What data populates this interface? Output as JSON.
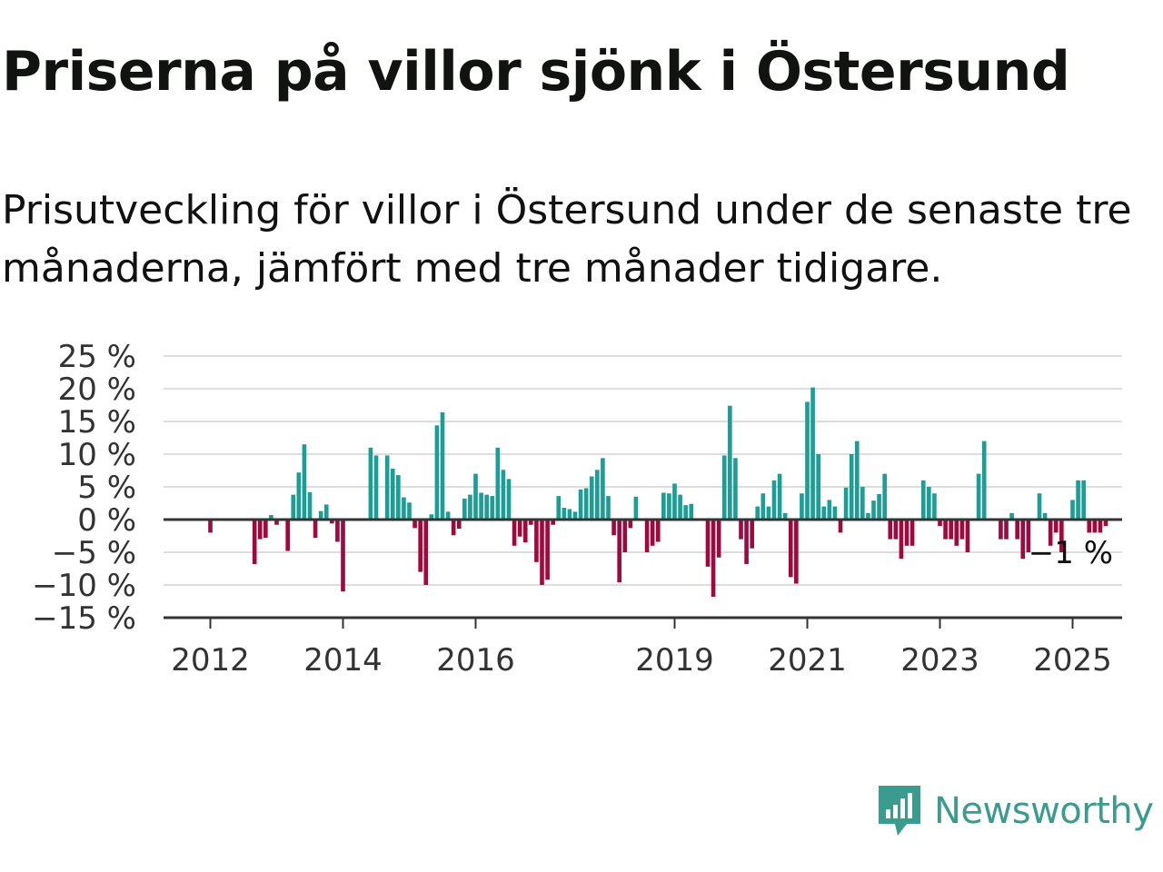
{
  "header": {
    "title": "Priserna på villor sjönk i Östersund",
    "subtitle": "Prisutveckling för villor i Östersund under de senaste tre månaderna, jämfört med tre månader tidigare."
  },
  "brand": {
    "name": "Newsworthy"
  },
  "colors": {
    "positive": "#1a9e96",
    "negative": "#a1083e",
    "grid": "#dddddd",
    "axis": "#333333",
    "brand": "#3a9c8f"
  },
  "chart_data": {
    "type": "bar",
    "unit": "%",
    "ylim": [
      -15,
      25
    ],
    "y_ticks": [
      25,
      20,
      15,
      10,
      5,
      0,
      -5,
      -10,
      -15
    ],
    "y_tick_labels": [
      "25 %",
      "20 %",
      "15 %",
      "10 %",
      "5 %",
      "0 %",
      "−5 %",
      "−10 %",
      "−15 %"
    ],
    "x_ticks": [
      2012,
      2014,
      2016,
      2019,
      2021,
      2023,
      2025
    ],
    "x_tick_labels": [
      "2012",
      "2014",
      "2016",
      "2019",
      "2021",
      "2023",
      "2025"
    ],
    "start_year": 2012,
    "last_value_label": "−1 %",
    "values": [
      -2,
      0,
      0,
      0,
      0,
      0,
      0,
      0,
      -6.8,
      -3,
      -2.8,
      0.7,
      -0.8,
      0,
      -4.8,
      3.8,
      7.2,
      11.5,
      4.2,
      -2.8,
      1.3,
      2.3,
      -0.6,
      -3.4,
      -11,
      0,
      0,
      0,
      0,
      11,
      9.8,
      0,
      9.8,
      7.8,
      6.8,
      3.4,
      2.6,
      -1.3,
      -8,
      -10,
      0.8,
      14.4,
      16.4,
      1.2,
      -2.4,
      -1.4,
      3.2,
      3.8,
      7,
      4.1,
      3.8,
      3.6,
      11,
      7.6,
      6.2,
      -4,
      -2.6,
      -3.5,
      -0.8,
      -6.5,
      -10,
      -9.2,
      -0.8,
      3.6,
      1.8,
      1.6,
      1.2,
      4.6,
      4.8,
      6.6,
      7.6,
      9.4,
      3.6,
      -2.4,
      -9.6,
      -5,
      -1.3,
      3.5,
      0,
      -5,
      -4,
      -3.4,
      4.1,
      4,
      5.5,
      3.8,
      2.2,
      2.4,
      0,
      0,
      -7.2,
      -11.8,
      -5.8,
      9.8,
      17.4,
      9.4,
      -3,
      -6.8,
      -4.4,
      2,
      4,
      2,
      6,
      7,
      1,
      -8.8,
      -9.8,
      4,
      18,
      20.2,
      10,
      2,
      3,
      2,
      -2,
      4.9,
      10,
      12,
      5,
      1,
      2.9,
      3.9,
      7,
      -3,
      -3,
      -6,
      -4,
      -4,
      0,
      6,
      5,
      4,
      -1,
      -3,
      -3,
      -4,
      -3,
      -5,
      0,
      7,
      12,
      0,
      0,
      -3,
      -3,
      1,
      -3,
      -6,
      -5,
      0,
      4,
      1,
      -4,
      -2,
      -5,
      0,
      3,
      6,
      6,
      -2,
      -2,
      -2,
      -1
    ]
  }
}
